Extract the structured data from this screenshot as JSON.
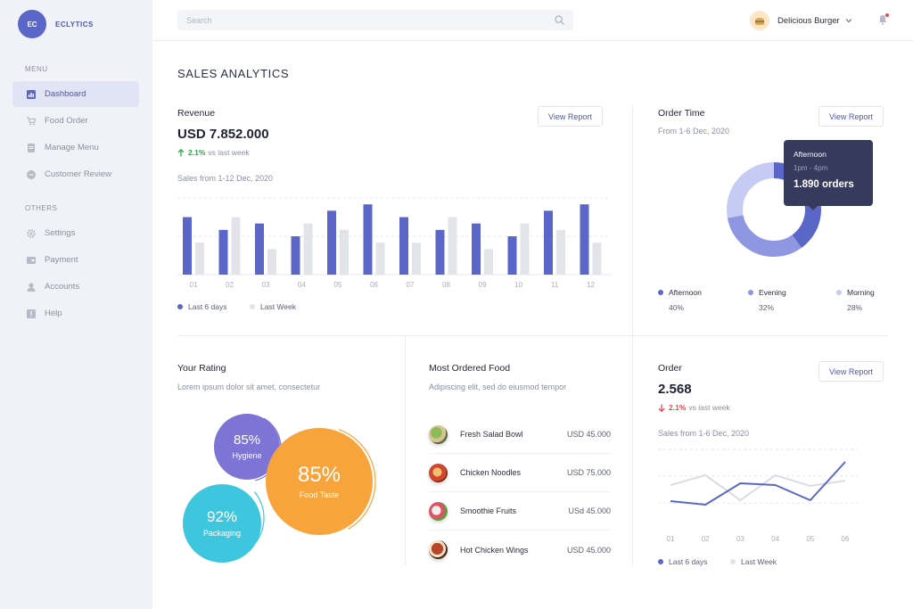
{
  "app": {
    "logo_text": "EC",
    "name": "ECLYTICS"
  },
  "sidebar": {
    "menu_label": "MENU",
    "others_label": "OTHERS",
    "menu_items": [
      {
        "label": "Dashboard",
        "icon": "dashboard-icon",
        "active": true
      },
      {
        "label": "Food Order",
        "icon": "cart-icon"
      },
      {
        "label": "Manage Menu",
        "icon": "menu-icon"
      },
      {
        "label": "Customer Review",
        "icon": "review-icon"
      }
    ],
    "other_items": [
      {
        "label": "Settings",
        "icon": "gear-icon"
      },
      {
        "label": "Payment",
        "icon": "card-icon"
      },
      {
        "label": "Accounts",
        "icon": "user-icon"
      },
      {
        "label": "Help",
        "icon": "help-icon"
      }
    ]
  },
  "topbar": {
    "search_placeholder": "Search",
    "user_name": "Delicious Burger"
  },
  "page": {
    "title": "SALES ANALYTICS"
  },
  "revenue": {
    "title": "Revenue",
    "value": "USD 7.852.000",
    "delta_pct": "2.1%",
    "delta_text": "vs last week",
    "subtitle": "Sales from 1-12 Dec, 2020",
    "button": "View Report",
    "legend": [
      "Last 6 days",
      "Last Week"
    ]
  },
  "order_time": {
    "title": "Order Time",
    "subtitle": "From 1-6 Dec, 2020",
    "button": "View Report",
    "tooltip": {
      "label": "Afternoon",
      "time": "1pm - 4pm",
      "value": "1.890 orders"
    },
    "legend": [
      {
        "label": "Afternoon",
        "pct": "40%"
      },
      {
        "label": "Evening",
        "pct": "32%"
      },
      {
        "label": "Morning",
        "pct": "28%"
      }
    ]
  },
  "rating": {
    "title": "Your Rating",
    "subtitle": "Lorem ipsum dolor sit amet, consectetur",
    "bubbles": [
      {
        "value": "85%",
        "label": "Hygiene"
      },
      {
        "value": "85%",
        "label": "Food Taste"
      },
      {
        "value": "92%",
        "label": "Packaging"
      }
    ]
  },
  "most_ordered": {
    "title": "Most Ordered Food",
    "subtitle": "Adipiscing elit, sed do eiusmod tempor",
    "items": [
      {
        "name": "Fresh Salad Bowl",
        "price": "USD 45.000"
      },
      {
        "name": "Chicken Noodles",
        "price": "USD 75.000"
      },
      {
        "name": "Smoothie Fruits",
        "price": "USd 45.000"
      },
      {
        "name": "Hot Chicken Wings",
        "price": "USD 45.000"
      }
    ]
  },
  "order": {
    "title": "Order",
    "value": "2.568",
    "delta_pct": "2.1%",
    "delta_text": "vs last week",
    "subtitle": "Sales from 1-6 Dec, 2020",
    "button": "View Report",
    "legend": [
      "Last 6 days",
      "Last Week"
    ]
  },
  "colors": {
    "primary": "#5a67c8",
    "light_bar": "#e3e4ea",
    "donut_afternoon": "#5a67c8",
    "donut_evening": "#8f97e3",
    "donut_morning": "#c6cbf4",
    "hygiene": "#7d74d6",
    "food_taste": "#f7a43c",
    "packaging": "#3fc6df"
  },
  "chart_data": [
    {
      "type": "bar",
      "categories": [
        "01",
        "02",
        "03",
        "04",
        "05",
        "06",
        "07",
        "08",
        "09",
        "10",
        "11",
        "12"
      ],
      "series": [
        {
          "name": "Last 6 days",
          "values": [
            9,
            7,
            8,
            6,
            10,
            11,
            9,
            7,
            8,
            6,
            10,
            11
          ]
        },
        {
          "name": "Last Week",
          "values": [
            5,
            9,
            4,
            8,
            7,
            5,
            5,
            9,
            4,
            8,
            7,
            5
          ]
        }
      ],
      "ylim": [
        0,
        12
      ],
      "grid": true
    },
    {
      "type": "pie",
      "categories": [
        "Afternoon",
        "Evening",
        "Morning"
      ],
      "values": [
        40,
        32,
        28
      ]
    },
    {
      "type": "line",
      "categories": [
        "01",
        "02",
        "03",
        "04",
        "05",
        "06"
      ],
      "series": [
        {
          "name": "Last 6 days",
          "values": [
            3.2,
            2.8,
            5.2,
            5.0,
            3.3,
            7.6
          ]
        },
        {
          "name": "Last Week",
          "values": [
            5.0,
            6.1,
            3.3,
            6.1,
            4.9,
            5.5
          ]
        }
      ],
      "ylim": [
        0,
        9
      ],
      "grid": true
    }
  ]
}
